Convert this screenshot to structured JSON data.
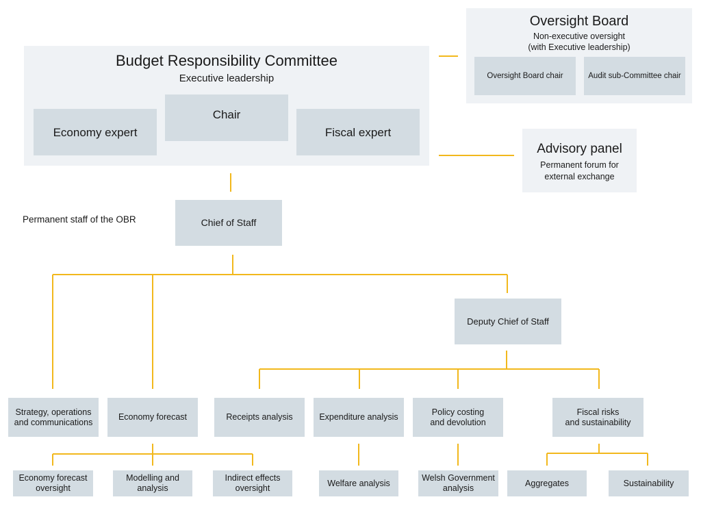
{
  "brc": {
    "title": "Budget Responsibility Committee",
    "subtitle": "Executive leadership",
    "chair": "Chair",
    "economy_expert": "Economy expert",
    "fiscal_expert": "Fiscal expert"
  },
  "oversight": {
    "title": "Oversight Board",
    "subtitle_line1": "Non-executive oversight",
    "subtitle_line2": "(with Executive leadership)",
    "board_chair": "Oversight Board chair",
    "audit_chair": "Audit sub-Committee chair"
  },
  "advisory": {
    "title": "Advisory panel",
    "subtitle_line1": "Permanent forum for",
    "subtitle_line2": "external exchange"
  },
  "staff_label": "Permanent staff of the OBR",
  "chief_of_staff": "Chief of Staff",
  "deputy_chief_of_staff": "Deputy Chief of Staff",
  "teams": {
    "strategy": [
      "Strategy, operations",
      "and communications"
    ],
    "economy_forecast": "Economy forecast",
    "receipts": "Receipts analysis",
    "expenditure": "Expenditure analysis",
    "policy": [
      "Policy costing",
      "and devolution"
    ],
    "fiscal_risks": [
      "Fiscal risks",
      "and sustainability"
    ]
  },
  "subteams": {
    "efo": [
      "Economy forecast",
      "oversight"
    ],
    "modelling": [
      "Modelling and",
      "analysis"
    ],
    "indirect": [
      "Indirect effects",
      "oversight"
    ],
    "welfare": "Welfare analysis",
    "welsh": [
      "Welsh Government",
      "analysis"
    ],
    "aggregates": "Aggregates",
    "sustainability": "Sustainability"
  },
  "colors": {
    "panel": "#eff2f5",
    "box": "#d3dce2",
    "connector": "#f2b81c"
  }
}
